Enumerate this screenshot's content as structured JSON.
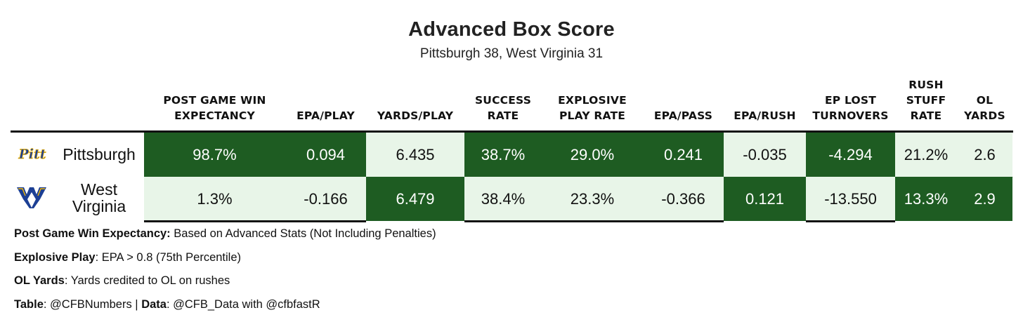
{
  "title": "Advanced Box Score",
  "subtitle": "Pittsburgh 38, West Virginia 31",
  "columns": [
    {
      "key": "wp",
      "lines": [
        "POST GAME WIN",
        "EXPECTANCY"
      ]
    },
    {
      "key": "epa_play",
      "lines": [
        "EPA/PLAY"
      ]
    },
    {
      "key": "yards_play",
      "lines": [
        "YARDS/PLAY"
      ]
    },
    {
      "key": "success",
      "lines": [
        "SUCCESS",
        "RATE"
      ]
    },
    {
      "key": "explosive",
      "lines": [
        "EXPLOSIVE",
        "PLAY RATE"
      ]
    },
    {
      "key": "epa_pass",
      "lines": [
        "EPA/PASS"
      ]
    },
    {
      "key": "epa_rush",
      "lines": [
        "EPA/RUSH"
      ]
    },
    {
      "key": "ep_lost",
      "lines": [
        "EP LOST",
        "TURNOVERS"
      ]
    },
    {
      "key": "stuff",
      "lines": [
        "RUSH",
        "STUFF",
        "RATE"
      ]
    },
    {
      "key": "ol",
      "lines": [
        "OL",
        "YARDS"
      ]
    }
  ],
  "teams": [
    {
      "name_lines": [
        "Pittsburgh"
      ],
      "logo": "pitt-logo",
      "logo_text": "Pitt"
    },
    {
      "name_lines": [
        "West",
        "Virginia"
      ],
      "logo": "wvu-logo",
      "logo_text": "WV"
    }
  ],
  "colors": {
    "better": "#1e5c22",
    "worse": "#e8f5e8"
  },
  "chart_data": {
    "type": "table",
    "title": "Advanced Box Score",
    "subtitle": "Pittsburgh 38, West Virginia 31",
    "columns": [
      "POST GAME WIN EXPECTANCY",
      "EPA/PLAY",
      "YARDS/PLAY",
      "SUCCESS RATE",
      "EXPLOSIVE PLAY RATE",
      "EPA/PASS",
      "EPA/RUSH",
      "EP LOST TURNOVERS",
      "RUSH STUFF RATE",
      "OL YARDS"
    ],
    "rows": [
      {
        "team": "Pittsburgh",
        "values": [
          "98.7%",
          "0.094",
          "6.435",
          "38.7%",
          "29.0%",
          "0.241",
          "-0.035",
          "-4.294",
          "21.2%",
          "2.6"
        ],
        "shade": [
          "dark",
          "dark",
          "light",
          "dark",
          "dark",
          "dark",
          "light",
          "dark",
          "light",
          "light"
        ]
      },
      {
        "team": "West Virginia",
        "values": [
          "1.3%",
          "-0.166",
          "6.479",
          "38.4%",
          "23.3%",
          "-0.366",
          "0.121",
          "-13.550",
          "13.3%",
          "2.9"
        ],
        "shade": [
          "light",
          "light",
          "dark",
          "light",
          "light",
          "light",
          "dark",
          "light",
          "dark",
          "dark"
        ]
      }
    ]
  },
  "footnotes": [
    {
      "label": "Post Game Win Expectancy:",
      "text": " Based on Advanced Stats (Not Including Penalties)"
    },
    {
      "label": "Explosive Play",
      "text": ": EPA > 0.8 (75th Percentile)"
    },
    {
      "label": "OL Yards",
      "text": ": Yards credited to OL on rushes"
    },
    {
      "label": "Table",
      "text": ": @CFBNumbers | ",
      "label2": "Data",
      "text2": ": @CFB_Data with @cfbfastR"
    }
  ]
}
